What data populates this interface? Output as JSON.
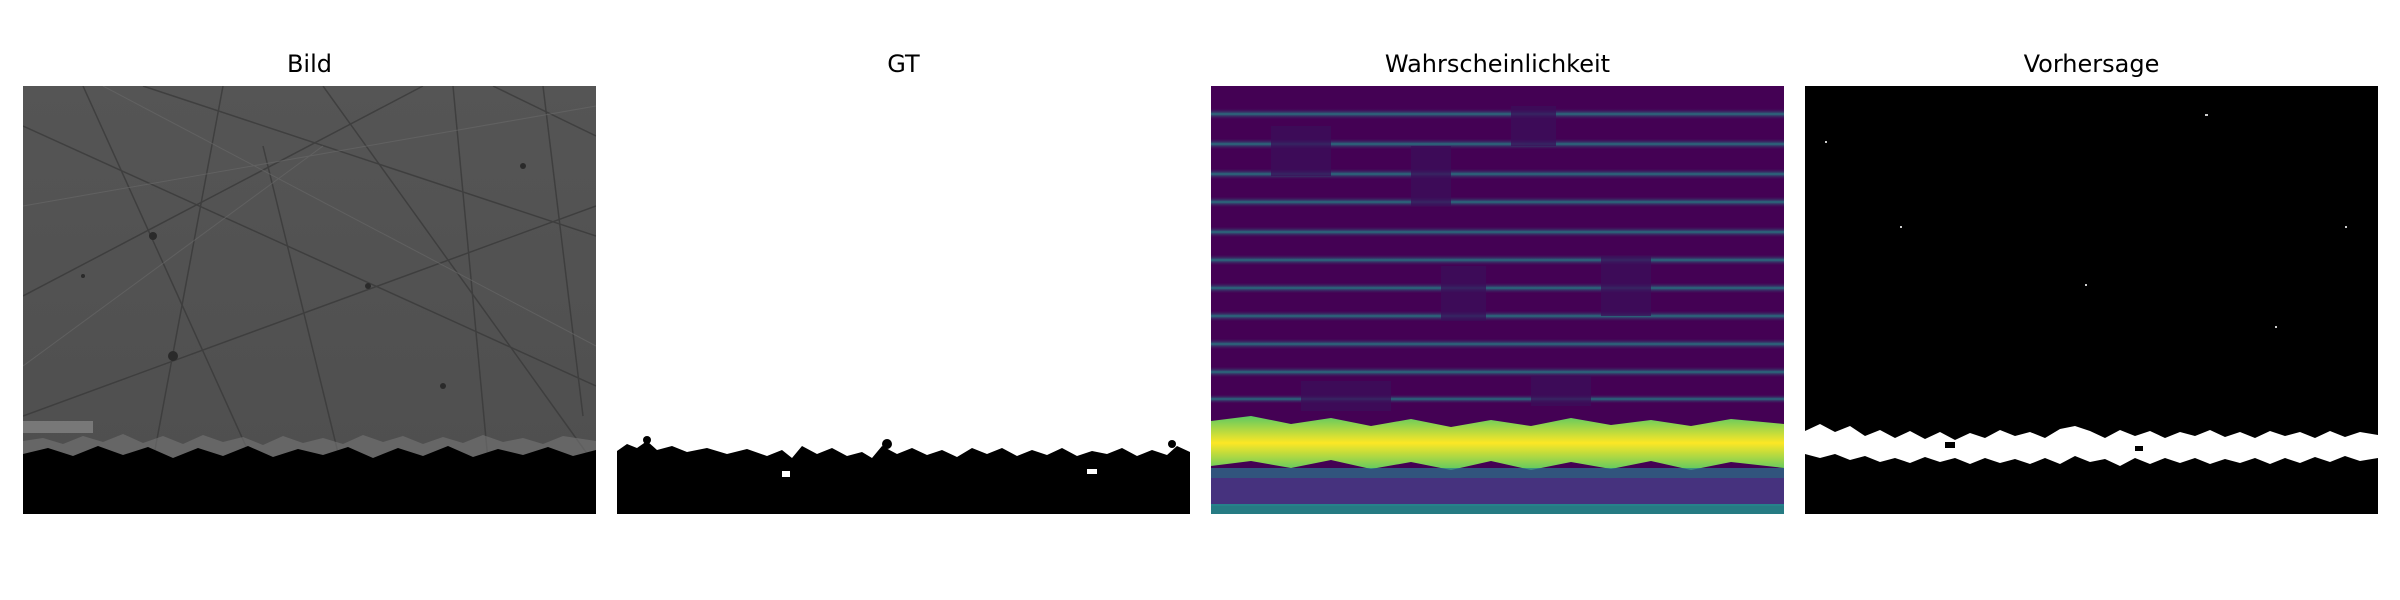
{
  "figure": {
    "panels": [
      {
        "title": "Bild"
      },
      {
        "title": "GT"
      },
      {
        "title": "Wahrscheinlichkeit"
      },
      {
        "title": "Vorhersage"
      }
    ]
  },
  "colors": {
    "background": "#ffffff",
    "mask_foreground": "#ffffff",
    "mask_background": "#000000",
    "viridis_low": "#440154",
    "viridis_mid": "#21918c",
    "viridis_high": "#fde725",
    "micrograph_gray": "#5a5a5a"
  }
}
